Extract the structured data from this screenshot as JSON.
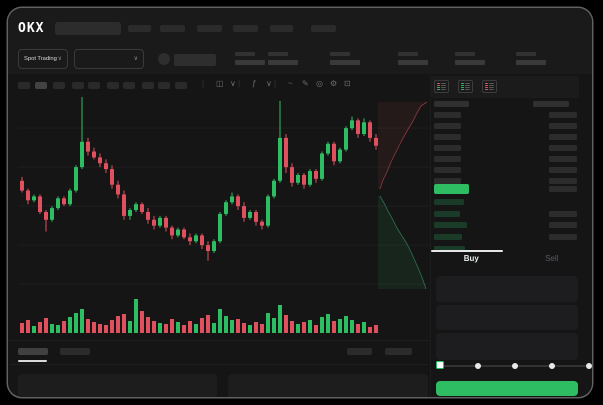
{
  "app": {
    "logo_text": "OKX"
  },
  "top_nav": {
    "item_count": 6,
    "search": {
      "placeholder": ""
    }
  },
  "ticker_bar": {
    "market_selector_label": "Spot Trading",
    "chevron": "∨",
    "stat_count": 6
  },
  "chart_toolbar": {
    "timeframe_count": 10,
    "active_timeframe_index": 1,
    "icons": [
      {
        "name": "candle-style-icon",
        "glyph": "◫"
      },
      {
        "name": "chevron-down-icon",
        "glyph": "∨"
      },
      {
        "name": "indicators-icon",
        "glyph": "ƒ"
      },
      {
        "name": "chevron-down-icon",
        "glyph": "∨"
      },
      {
        "name": "curve-icon",
        "glyph": "~"
      },
      {
        "name": "draw-icon",
        "glyph": "✎"
      },
      {
        "name": "snapshot-icon",
        "glyph": "◎"
      },
      {
        "name": "settings-icon",
        "glyph": "⚙"
      },
      {
        "name": "fullscreen-icon",
        "glyph": "⊡"
      }
    ]
  },
  "order_book": {
    "view_modes": [
      "book-combined",
      "book-bids-only",
      "book-asks-only"
    ],
    "ask_rows": 7,
    "bid_rows": 5,
    "bid_rows_with_amount": [
      1,
      2,
      3
    ]
  },
  "trade_panel": {
    "tabs": [
      {
        "label": "Buy",
        "active": true
      },
      {
        "label": "Sell",
        "active": false
      }
    ],
    "input_count": 3,
    "slider": {
      "stops": 5,
      "active_stop": 0
    },
    "submit_label": ""
  },
  "bottom_panel": {
    "tab_count": 2,
    "active_tab_index": 0,
    "action_count": 2,
    "row_count": 2
  },
  "colors": {
    "up": "#2ebd63",
    "down": "#e0515f",
    "last_price_bar": "#2ebd63",
    "accent_button": "#2ebd63",
    "gridline": "#1e1e1e",
    "depth_ask_fill": "rgba(235,87,95,0.08)",
    "depth_ask_line": "rgba(235,87,95,0.55)",
    "depth_bid_fill": "rgba(46,189,99,0.10)",
    "depth_bid_line": "rgba(64,170,125,0.6)"
  },
  "chart_data": {
    "type": "candlestick",
    "ylim": [
      0,
      100
    ],
    "gridline_values": [
      83,
      63,
      43,
      23,
      3
    ],
    "candles": [
      [
        56,
        58,
        50,
        51
      ],
      [
        51,
        52,
        44,
        46
      ],
      [
        46,
        49,
        45,
        48
      ],
      [
        48,
        49,
        39,
        40
      ],
      [
        40,
        41,
        30,
        36
      ],
      [
        36,
        43,
        35,
        42
      ],
      [
        42,
        48,
        41,
        47
      ],
      [
        47,
        48,
        43,
        44
      ],
      [
        44,
        52,
        43,
        51
      ],
      [
        51,
        64,
        50,
        63
      ],
      [
        63,
        99,
        62,
        76
      ],
      [
        76,
        78,
        69,
        71
      ],
      [
        71,
        73,
        67,
        68
      ],
      [
        68,
        70,
        63,
        65
      ],
      [
        65,
        67,
        60,
        62
      ],
      [
        62,
        64,
        52,
        54
      ],
      [
        54,
        56,
        47,
        49
      ],
      [
        49,
        51,
        36,
        38
      ],
      [
        38,
        42,
        36,
        41
      ],
      [
        41,
        45,
        40,
        44
      ],
      [
        44,
        45,
        39,
        40
      ],
      [
        40,
        42,
        34,
        36
      ],
      [
        36,
        38,
        31,
        33
      ],
      [
        33,
        38,
        32,
        37
      ],
      [
        37,
        38,
        30,
        32
      ],
      [
        32,
        33,
        26,
        28
      ],
      [
        28,
        32,
        27,
        31
      ],
      [
        31,
        32,
        26,
        27
      ],
      [
        27,
        29,
        23,
        25
      ],
      [
        25,
        29,
        24,
        28
      ],
      [
        28,
        29,
        21,
        23
      ],
      [
        23,
        25,
        15,
        20
      ],
      [
        20,
        26,
        19,
        25
      ],
      [
        25,
        40,
        24,
        39
      ],
      [
        39,
        46,
        38,
        45
      ],
      [
        45,
        50,
        44,
        48
      ],
      [
        48,
        49,
        41,
        43
      ],
      [
        43,
        45,
        35,
        37
      ],
      [
        37,
        41,
        36,
        40
      ],
      [
        40,
        41,
        33,
        35
      ],
      [
        35,
        36,
        31,
        33
      ],
      [
        33,
        49,
        32,
        48
      ],
      [
        48,
        57,
        47,
        56
      ],
      [
        56,
        97,
        55,
        78
      ],
      [
        78,
        80,
        60,
        63
      ],
      [
        63,
        65,
        53,
        55
      ],
      [
        55,
        60,
        54,
        59
      ],
      [
        59,
        60,
        52,
        54
      ],
      [
        54,
        62,
        53,
        61
      ],
      [
        61,
        62,
        55,
        57
      ],
      [
        57,
        71,
        56,
        70
      ],
      [
        70,
        76,
        69,
        75
      ],
      [
        75,
        76,
        64,
        66
      ],
      [
        66,
        73,
        65,
        72
      ],
      [
        72,
        84,
        71,
        83
      ],
      [
        83,
        89,
        82,
        87
      ],
      [
        87,
        88,
        78,
        80
      ],
      [
        80,
        88,
        79,
        86
      ],
      [
        86,
        87,
        76,
        78
      ],
      [
        78,
        80,
        72,
        74
      ]
    ],
    "volume": [
      10,
      13,
      7,
      11,
      15,
      9,
      8,
      12,
      16,
      20,
      24,
      14,
      11,
      9,
      8,
      13,
      17,
      19,
      12,
      34,
      22,
      16,
      12,
      10,
      9,
      14,
      11,
      8,
      12,
      9,
      15,
      18,
      10,
      24,
      17,
      13,
      14,
      10,
      8,
      11,
      9,
      20,
      15,
      28,
      18,
      12,
      9,
      11,
      13,
      8,
      16,
      19,
      12,
      14,
      17,
      13,
      9,
      11,
      6,
      8
    ],
    "depth": {
      "asks_line": [
        [
          409,
          7
        ],
        [
          403,
          11
        ],
        [
          399,
          18
        ],
        [
          395,
          26
        ],
        [
          389,
          36
        ],
        [
          383,
          47
        ],
        [
          378,
          57
        ],
        [
          373,
          67
        ],
        [
          369,
          77
        ],
        [
          365,
          85
        ],
        [
          362,
          94
        ]
      ],
      "bids_line": [
        [
          362,
          101
        ],
        [
          366,
          108
        ],
        [
          370,
          116
        ],
        [
          375,
          125
        ],
        [
          379,
          133
        ],
        [
          384,
          141
        ],
        [
          389,
          149
        ],
        [
          393,
          157
        ],
        [
          397,
          166
        ],
        [
          401,
          175
        ],
        [
          405,
          185
        ],
        [
          408,
          194
        ]
      ]
    }
  }
}
